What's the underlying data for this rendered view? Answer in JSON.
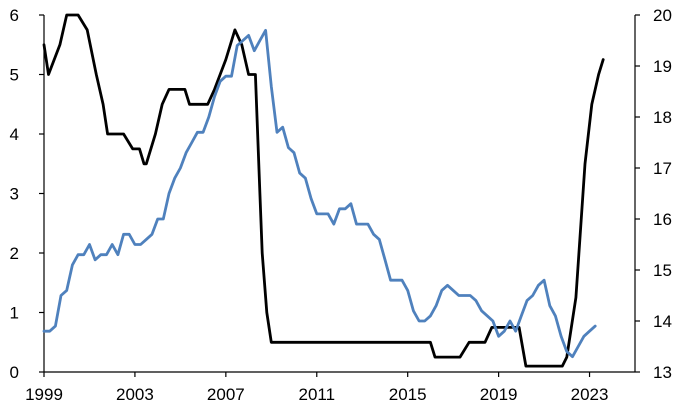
{
  "chart_data": {
    "type": "line",
    "title": "",
    "xlabel": "",
    "ylabel_left": "",
    "ylabel_right": "",
    "grid": false,
    "legend": "none",
    "x_axis": {
      "range": [
        1999,
        2025
      ],
      "ticks": [
        1999,
        2003,
        2007,
        2011,
        2015,
        2019,
        2023
      ],
      "tick_labels": [
        "1999",
        "2003",
        "2007",
        "2011",
        "2015",
        "2019",
        "2023"
      ]
    },
    "y_left": {
      "range": [
        0,
        6
      ],
      "ticks": [
        0,
        1,
        2,
        3,
        4,
        5,
        6
      ],
      "tick_labels": [
        "0",
        "1",
        "2",
        "3",
        "4",
        "5",
        "6"
      ]
    },
    "y_right": {
      "range": [
        13,
        20
      ],
      "ticks": [
        13,
        14,
        15,
        16,
        17,
        18,
        19,
        20
      ],
      "tick_labels": [
        "13",
        "14",
        "15",
        "16",
        "17",
        "18",
        "19",
        "20"
      ]
    },
    "series": [
      {
        "axis": "left",
        "color": "#000000",
        "x": [
          1999,
          1999.2,
          1999.7,
          2000.0,
          2000.5,
          2000.9,
          2001.3,
          2001.6,
          2001.8,
          2002.5,
          2002.9,
          2003.2,
          2003.4,
          2003.5,
          2003.9,
          2004.2,
          2004.5,
          2005.2,
          2005.4,
          2006.2,
          2006.5,
          2007.0,
          2007.4,
          2007.7,
          2008.0,
          2008.3,
          2008.5,
          2008.6,
          2008.8,
          2009.0,
          2009.2,
          2016.0,
          2016.2,
          2017.3,
          2017.7,
          2018.4,
          2018.7,
          2019.5,
          2019.9,
          2020.2,
          2021.8,
          2022.0,
          2022.4,
          2022.8,
          2023.1,
          2023.4,
          2023.6
        ],
        "y": [
          5.5,
          5.0,
          5.5,
          6.0,
          6.0,
          5.75,
          5.0,
          4.5,
          4.0,
          4.0,
          3.75,
          3.75,
          3.5,
          3.5,
          4.0,
          4.5,
          4.75,
          4.75,
          4.5,
          4.5,
          4.75,
          5.25,
          5.75,
          5.5,
          5.0,
          5.0,
          3.0,
          2.0,
          1.0,
          0.5,
          0.5,
          0.5,
          0.25,
          0.25,
          0.5,
          0.5,
          0.75,
          0.75,
          0.75,
          0.1,
          0.1,
          0.25,
          1.25,
          3.5,
          4.5,
          5.0,
          5.25
        ]
      },
      {
        "axis": "right",
        "color": "#4f81bd",
        "x": [
          1999.0,
          1999.25,
          1999.5,
          1999.75,
          2000.0,
          2000.25,
          2000.5,
          2000.75,
          2001.0,
          2001.25,
          2001.5,
          2001.75,
          2002.0,
          2002.25,
          2002.5,
          2002.75,
          2003.0,
          2003.25,
          2003.5,
          2003.75,
          2004.0,
          2004.25,
          2004.5,
          2004.75,
          2005.0,
          2005.25,
          2005.5,
          2005.75,
          2006.0,
          2006.25,
          2006.5,
          2006.75,
          2007.0,
          2007.25,
          2007.5,
          2007.75,
          2008.0,
          2008.25,
          2008.5,
          2008.75,
          2009.0,
          2009.25,
          2009.5,
          2009.75,
          2010.0,
          2010.25,
          2010.5,
          2010.75,
          2011.0,
          2011.25,
          2011.5,
          2011.75,
          2012.0,
          2012.25,
          2012.5,
          2012.75,
          2013.0,
          2013.25,
          2013.5,
          2013.75,
          2014.0,
          2014.25,
          2014.5,
          2014.75,
          2015.0,
          2015.25,
          2015.5,
          2015.75,
          2016.0,
          2016.25,
          2016.5,
          2016.75,
          2017.0,
          2017.25,
          2017.5,
          2017.75,
          2018.0,
          2018.25,
          2018.5,
          2018.75,
          2019.0,
          2019.25,
          2019.5,
          2019.75,
          2020.0,
          2020.25,
          2020.5,
          2020.75,
          2021.0,
          2021.25,
          2021.5,
          2021.75,
          2022.0,
          2022.25,
          2022.5,
          2022.75,
          2023.0,
          2023.25
        ],
        "y": [
          13.8,
          13.8,
          13.9,
          14.5,
          14.6,
          15.1,
          15.3,
          15.3,
          15.5,
          15.2,
          15.3,
          15.3,
          15.5,
          15.3,
          15.7,
          15.7,
          15.5,
          15.5,
          15.6,
          15.7,
          16.0,
          16.0,
          16.5,
          16.8,
          17.0,
          17.3,
          17.5,
          17.7,
          17.7,
          18.0,
          18.4,
          18.7,
          18.8,
          18.8,
          19.4,
          19.5,
          19.6,
          19.3,
          19.5,
          19.7,
          18.6,
          17.7,
          17.8,
          17.4,
          17.3,
          16.9,
          16.8,
          16.4,
          16.1,
          16.1,
          16.1,
          15.9,
          16.2,
          16.2,
          16.3,
          15.9,
          15.9,
          15.9,
          15.7,
          15.6,
          15.2,
          14.8,
          14.8,
          14.8,
          14.6,
          14.2,
          14.0,
          14.0,
          14.1,
          14.3,
          14.6,
          14.7,
          14.6,
          14.5,
          14.5,
          14.5,
          14.4,
          14.2,
          14.1,
          14.0,
          13.7,
          13.8,
          14.0,
          13.8,
          14.1,
          14.4,
          14.5,
          14.7,
          14.8,
          14.3,
          14.1,
          13.7,
          13.4,
          13.3,
          13.5,
          13.7,
          13.8,
          13.9
        ]
      }
    ]
  }
}
